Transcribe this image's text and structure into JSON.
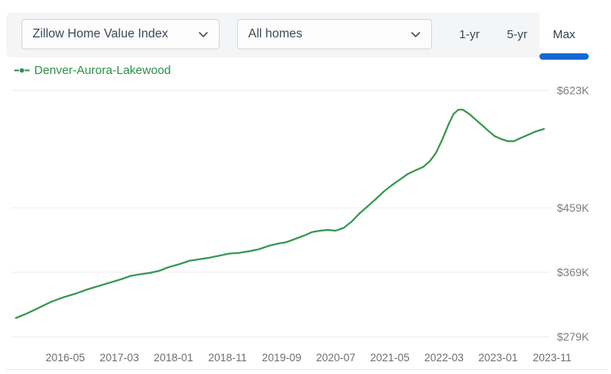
{
  "toolbar": {
    "metric_dropdown": {
      "value": "Zillow Home Value Index"
    },
    "home_type_dropdown": {
      "value": "All homes"
    },
    "range_buttons": [
      {
        "label": "1-yr",
        "active": false
      },
      {
        "label": "5-yr",
        "active": false
      },
      {
        "label": "Max",
        "active": true
      }
    ]
  },
  "legend": {
    "series_label": "Denver-Aurora-Lakewood"
  },
  "colors": {
    "accent_blue": "#1569d3",
    "line_green": "#35974e",
    "legend_green": "#2f8f49",
    "toolbar_bg": "#f4f5f6",
    "gridline": "#ededed",
    "y_label_gray": "#7e7e7e",
    "x_label_gray": "#6e6e6e"
  },
  "chart_data": {
    "type": "line",
    "title": "Zillow Home Value Index — All homes — Max range",
    "legend_entries": [
      "Denver-Aurora-Lakewood"
    ],
    "x_tick_labels": [
      "2016-05",
      "2017-03",
      "2018-01",
      "2018-11",
      "2019-09",
      "2020-07",
      "2021-05",
      "2022-03",
      "2023-01",
      "2023-11"
    ],
    "y_tick_labels": [
      "$623K",
      "$459K",
      "$369K",
      "$279K"
    ],
    "y_tick_values": [
      623,
      459,
      369,
      279
    ],
    "y_unit": "thousands of USD",
    "y_axis_side": "right",
    "grid": "horizontal gridlines only",
    "x_start_month": "2015-08",
    "x_end_month": "2023-11",
    "series": [
      {
        "name": "Denver-Aurora-Lakewood",
        "color": "#35974e",
        "points_month_value": [
          [
            0,
            305
          ],
          [
            2.2,
            312
          ],
          [
            4.4,
            320
          ],
          [
            6.6,
            328
          ],
          [
            8.8,
            334
          ],
          [
            11,
            339
          ],
          [
            13.2,
            345
          ],
          [
            15.4,
            350
          ],
          [
            17.6,
            355
          ],
          [
            19.4,
            359
          ],
          [
            21.3,
            364
          ],
          [
            22.8,
            366
          ],
          [
            24.7,
            368
          ],
          [
            26.5,
            371
          ],
          [
            28.2,
            376
          ],
          [
            30.1,
            380
          ],
          [
            32.1,
            385
          ],
          [
            33.8,
            387
          ],
          [
            35.6,
            389
          ],
          [
            37.5,
            392
          ],
          [
            39.4,
            395
          ],
          [
            41.2,
            396
          ],
          [
            42.9,
            398
          ],
          [
            44.9,
            401
          ],
          [
            46.8,
            406
          ],
          [
            48.5,
            409
          ],
          [
            50,
            411
          ],
          [
            51.8,
            416
          ],
          [
            53.2,
            420
          ],
          [
            54.7,
            425
          ],
          [
            56.2,
            427
          ],
          [
            57.6,
            428
          ],
          [
            59.1,
            427
          ],
          [
            60.6,
            431
          ],
          [
            62.1,
            440
          ],
          [
            63.5,
            451
          ],
          [
            65,
            461
          ],
          [
            66.5,
            471
          ],
          [
            67.9,
            481
          ],
          [
            69.4,
            490
          ],
          [
            70.9,
            498
          ],
          [
            72.4,
            506
          ],
          [
            73.8,
            511
          ],
          [
            75.3,
            516
          ],
          [
            76.5,
            524
          ],
          [
            77.6,
            535
          ],
          [
            78.8,
            554
          ],
          [
            80,
            576
          ],
          [
            80.9,
            590
          ],
          [
            81.8,
            596
          ],
          [
            82.6,
            596
          ],
          [
            83.8,
            590
          ],
          [
            85,
            582
          ],
          [
            86.2,
            574
          ],
          [
            87.4,
            566
          ],
          [
            88.5,
            559
          ],
          [
            89.7,
            555
          ],
          [
            90.9,
            552
          ],
          [
            92.1,
            552
          ],
          [
            93.2,
            556
          ],
          [
            94.4,
            560
          ],
          [
            95.9,
            565
          ],
          [
            97.6,
            569
          ]
        ]
      }
    ]
  }
}
